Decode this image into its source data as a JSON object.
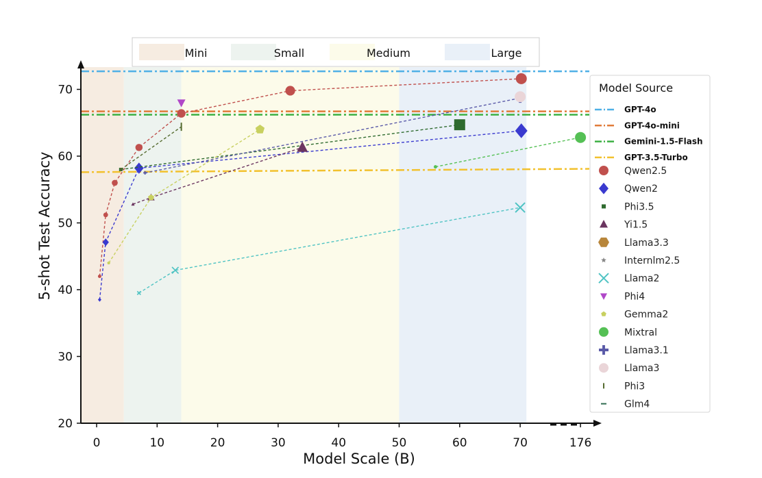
{
  "chart_data": {
    "type": "line",
    "title": "",
    "xlabel": "Model Scale (B)",
    "ylabel": "5-shot Test Accuracy",
    "ylim": [
      20,
      75
    ],
    "x_tick_labels": [
      "0",
      "10",
      "20",
      "30",
      "40",
      "50",
      "60",
      "70",
      "176"
    ],
    "y_ticks": [
      20,
      30,
      40,
      50,
      60,
      70
    ],
    "bands": [
      {
        "name": "Mini",
        "from": -2.5,
        "to": 4.5,
        "color": "#f6ece1"
      },
      {
        "name": "Small",
        "from": 4.5,
        "to": 14,
        "color": "#edf3ef"
      },
      {
        "name": "Medium",
        "from": 14,
        "to": 50,
        "color": "#fcfbea"
      },
      {
        "name": "Large",
        "from": 50,
        "to": 81,
        "color": "#e9f0f8"
      }
    ],
    "hlines": [
      {
        "name": "GPT-4o",
        "value": 72.7,
        "color": "#4fb0e6"
      },
      {
        "name": "GPT-4o-mini",
        "value": 66.7,
        "color": "#e07b39"
      },
      {
        "name": "Gemini-1.5-Flash",
        "value": 66.2,
        "color": "#3cb043"
      },
      {
        "name": "GPT-3.5-Turbo",
        "value": 57.6,
        "color": "#f2c12e",
        "end_value": 58.1
      }
    ],
    "series": [
      {
        "name": "Qwen2.5",
        "color": "#c0504d",
        "marker": "circle",
        "x": [
          0.5,
          1.5,
          3,
          7,
          14,
          32,
          72
        ],
        "y": [
          42,
          51.2,
          56,
          61.3,
          66.4,
          69.8,
          71.6
        ]
      },
      {
        "name": "Qwen2",
        "color": "#3a3acf",
        "marker": "diamond",
        "x": [
          0.5,
          1.5,
          7,
          72
        ],
        "y": [
          38.5,
          47.1,
          58.2,
          63.8
        ]
      },
      {
        "name": "Phi3.5",
        "color": "#2f6b2f",
        "marker": "square",
        "x": [
          4,
          60
        ],
        "y": [
          58,
          64.7
        ]
      },
      {
        "name": "Yi1.5",
        "color": "#6b3560",
        "marker": "triangle",
        "x": [
          6,
          9,
          34
        ],
        "y": [
          52.8,
          53.8,
          61.3
        ]
      },
      {
        "name": "Llama3.3",
        "color": "#b8863b",
        "marker": "hexagon",
        "x": [],
        "y": []
      },
      {
        "name": "Internlm2.5",
        "color": "#888888",
        "marker": "star",
        "x": [],
        "y": []
      },
      {
        "name": "Llama2",
        "color": "#4fc3c3",
        "marker": "x",
        "x": [
          7,
          13,
          70
        ],
        "y": [
          39.5,
          42.9,
          52.3
        ]
      },
      {
        "name": "Phi4",
        "color": "#b048c8",
        "marker": "triangle-down",
        "x": [
          14
        ],
        "y": [
          68
        ]
      },
      {
        "name": "Gemma2",
        "color": "#c8d060",
        "marker": "pentagon",
        "x": [
          2,
          9,
          27
        ],
        "y": [
          44,
          53.8,
          64
        ]
      },
      {
        "name": "Mixtral",
        "color": "#55c055",
        "marker": "circle",
        "x": [
          56,
          176
        ],
        "y": [
          58.4,
          62.8
        ]
      },
      {
        "name": "Llama3.1",
        "color": "#5a5aa8",
        "marker": "plus",
        "x": [
          8,
          70
        ],
        "y": [
          57.5,
          68.7
        ]
      },
      {
        "name": "Llama3",
        "color": "#ead5d8",
        "marker": "circle",
        "x": [
          70
        ],
        "y": [
          68.9
        ]
      },
      {
        "name": "Phi3",
        "color": "#556b2f",
        "marker": "vline",
        "x": [
          4,
          14
        ],
        "y": [
          58,
          64.4
        ]
      },
      {
        "name": "Glm4",
        "color": "#2f6b50",
        "marker": "hline",
        "x": [],
        "y": []
      }
    ],
    "legend": {
      "title": "Model Source",
      "position": "right",
      "entries": [
        "GPT-4o",
        "GPT-4o-mini",
        "Gemini-1.5-Flash",
        "GPT-3.5-Turbo",
        "Qwen2.5",
        "Qwen2",
        "Phi3.5",
        "Yi1.5",
        "Llama3.3",
        "Internlm2.5",
        "Llama2",
        "Phi4",
        "Gemma2",
        "Mixtral",
        "Llama3.1",
        "Llama3",
        "Phi3",
        "Glm4"
      ]
    }
  }
}
